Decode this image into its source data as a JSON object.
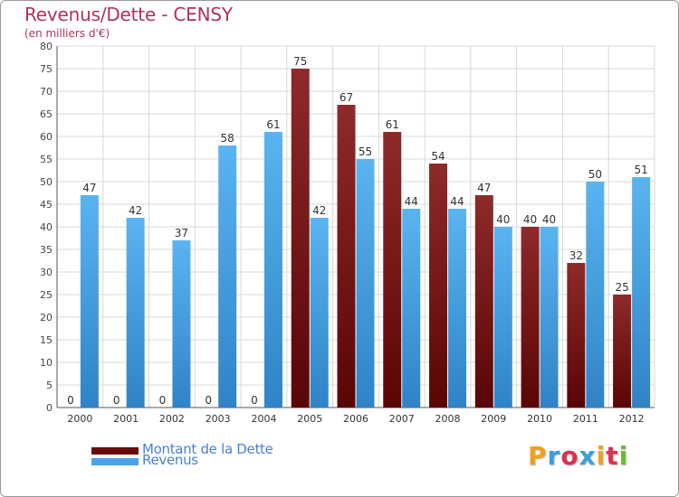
{
  "chart_data": {
    "type": "bar",
    "title": "Revenus/Dette - CENSY",
    "subtitle": "(en milliers d'€)",
    "categories": [
      "2000",
      "2001",
      "2002",
      "2003",
      "2004",
      "2005",
      "2006",
      "2007",
      "2008",
      "2009",
      "2010",
      "2011",
      "2012"
    ],
    "series": [
      {
        "name": "Montant de la Dette",
        "values": [
          0,
          0,
          0,
          0,
          0,
          75,
          67,
          61,
          54,
          47,
          40,
          32,
          25
        ],
        "color": "#6b0a0a"
      },
      {
        "name": "Revenus",
        "values": [
          47,
          42,
          37,
          58,
          61,
          42,
          55,
          44,
          44,
          40,
          40,
          50,
          51
        ],
        "color": "#4aa3e8"
      }
    ],
    "yticks": [
      "0",
      "5",
      "10",
      "15",
      "20",
      "25",
      "30",
      "35",
      "40",
      "45",
      "50",
      "55",
      "60",
      "65",
      "70",
      "75",
      "80"
    ],
    "ylim": [
      0,
      80
    ],
    "grid": true,
    "legend": "bottom-left"
  },
  "logo": {
    "letters": [
      "P",
      "r",
      "o",
      "x",
      "i",
      "t",
      "i"
    ],
    "colors": [
      "#f0a020",
      "#3aa0d8",
      "#e03050",
      "#3aa0d8",
      "#f0a020",
      "#e03050",
      "#70b830"
    ]
  }
}
